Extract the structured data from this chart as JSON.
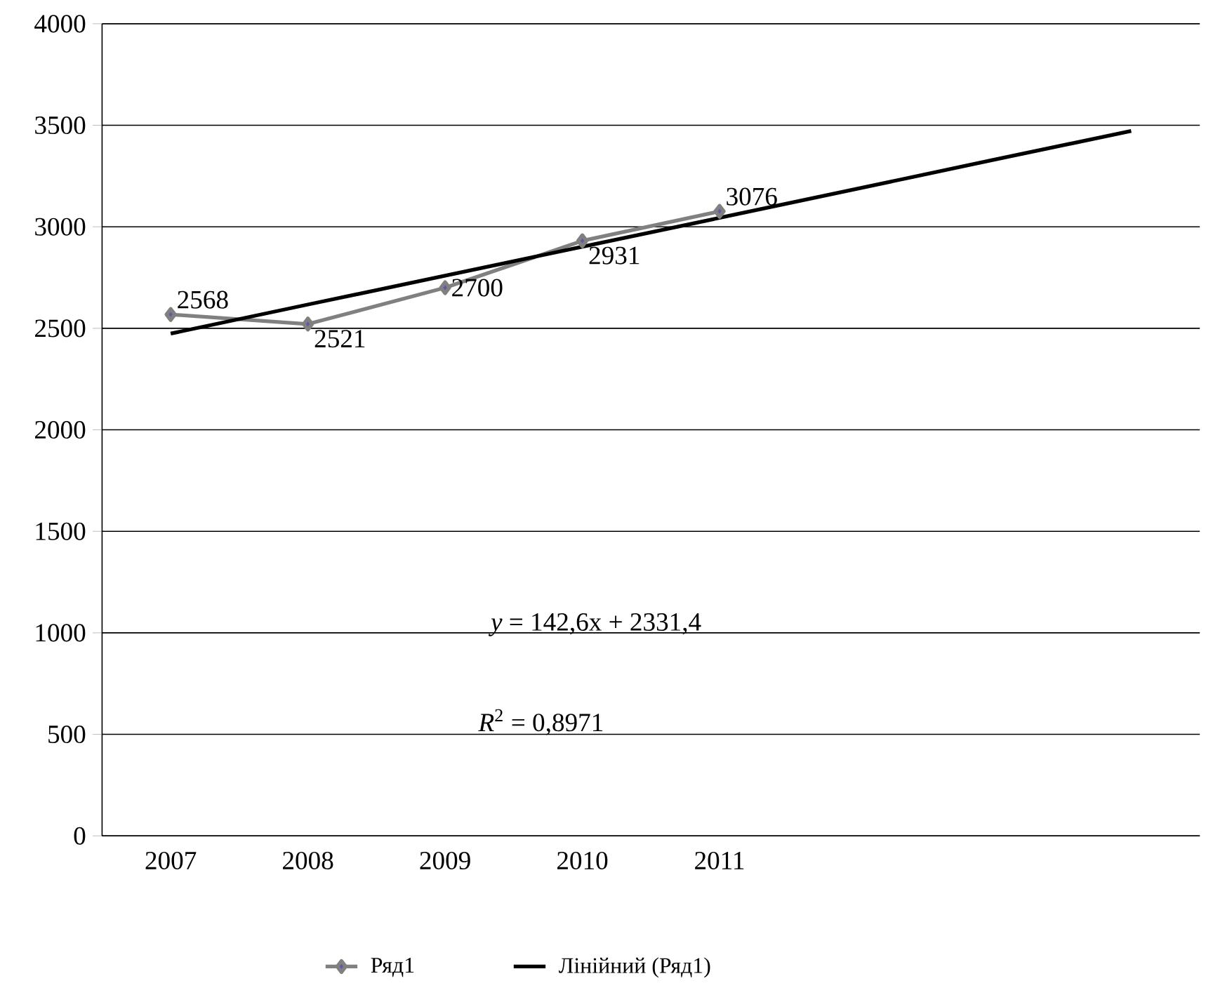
{
  "chart_data": {
    "type": "line",
    "categories": [
      "2007",
      "2008",
      "2009",
      "2010",
      "2011",
      null,
      null,
      null
    ],
    "series": [
      {
        "name": "Ряд1",
        "color": "#808080",
        "marker": "diamond",
        "values": [
          2568,
          2521,
          2700,
          2931,
          3076,
          null,
          null,
          null
        ],
        "value_labels": [
          "2568",
          "2521",
          "2700",
          "2931",
          "3076",
          null,
          null,
          null
        ]
      },
      {
        "name": "Лінійний (Ряд1)",
        "color": "#000000",
        "marker": "none",
        "values": [
          2474,
          2617,
          2759,
          2902,
          3044,
          3187,
          3330,
          3472
        ]
      }
    ],
    "ylim": [
      0,
      4000
    ],
    "yticks": [
      0,
      500,
      1000,
      1500,
      2000,
      2500,
      3000,
      3500,
      4000
    ],
    "grid": "y",
    "legend": "bottom",
    "annotations": [
      "*y* = 142,6x + 2331,4",
      "*R*$^{2}$ = 0,8971"
    ]
  }
}
